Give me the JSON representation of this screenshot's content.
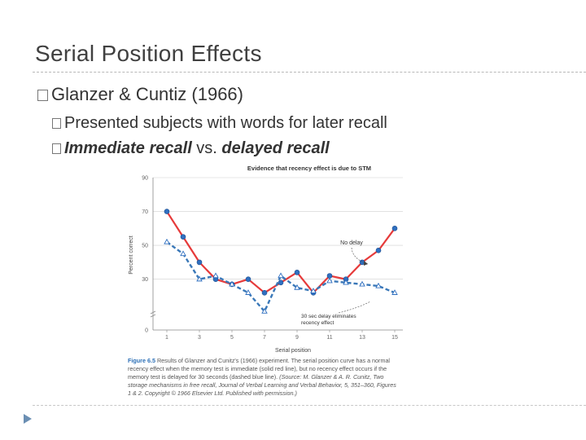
{
  "slide": {
    "title": "Serial Position Effects",
    "bullet1": "Glanzer & Cuntiz (1966)",
    "bullet2a": "Presented subjects with words for later recall",
    "bullet2b_part1": "Immediate recall",
    "bullet2b_part2": " vs. ",
    "bullet2b_part3": "delayed recall"
  },
  "caption": {
    "fig_label": "Figure 6.5",
    "text": " Results of Glanzer and Cunitz's (1966) experiment. The serial position curve has a normal recency effect when the memory test is immediate (solid red line), but no recency effect occurs if the memory test is delayed for 30 seconds (dashed blue line).",
    "source": " (Source: M. Glanzer & A. R. Cunitz, Two storage mechanisms in free recall, Journal of Verbal Learning and Verbal Behavior, 5, 351–360, Figures 1 & 2. Copyright © 1966 Elsevier Ltd. Published with permission.)"
  },
  "colors": {
    "immediate": "#e63a3a",
    "delayed": "#3a78b8",
    "marker": "#2f6fc0"
  },
  "chart_data": {
    "type": "line",
    "title": "Evidence that recency effect is due to STM",
    "xlabel": "Serial position",
    "ylabel": "Percent correct",
    "xlim": [
      1,
      15
    ],
    "ylim": [
      0,
      90
    ],
    "xticks": [
      1,
      3,
      5,
      7,
      9,
      11,
      13,
      15
    ],
    "yticks": [
      0,
      30,
      50,
      70,
      90
    ],
    "series": [
      {
        "name": "No delay",
        "style": "solid",
        "x": [
          1,
          2,
          3,
          4,
          5,
          6,
          7,
          8,
          9,
          10,
          11,
          12,
          13,
          14,
          15
        ],
        "y": [
          70,
          55,
          40,
          30,
          27,
          30,
          22,
          28,
          34,
          22,
          32,
          30,
          40,
          47,
          60
        ]
      },
      {
        "name": "30 sec delay",
        "style": "dashed",
        "x": [
          1,
          2,
          3,
          4,
          5,
          6,
          7,
          8,
          9,
          10,
          11,
          12,
          13,
          14,
          15
        ],
        "y": [
          52,
          45,
          30,
          32,
          27,
          22,
          11,
          32,
          25,
          23,
          29,
          28,
          27,
          26,
          22
        ]
      }
    ],
    "annotations": [
      {
        "text": "No delay"
      },
      {
        "text": "30 sec delay eliminates recency effect"
      }
    ]
  }
}
